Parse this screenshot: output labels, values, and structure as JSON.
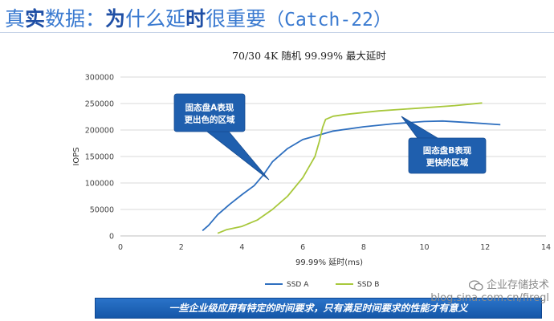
{
  "header": {
    "title_part1": "真",
    "title_part2": "实",
    "title_part3": "数据：",
    "title_part4": "为",
    "title_part5": "什么延",
    "title_part6": "时",
    "title_part7": "很重要",
    "title_part8": "（Catch-22）"
  },
  "chart_data": {
    "type": "line",
    "title": "70/30 4K 随机 99.99% 最大延时",
    "xlabel": "99.99% 延时(ms)",
    "ylabel": "IOPS",
    "xlim": [
      0,
      14
    ],
    "ylim": [
      0,
      300000
    ],
    "x_ticks": [
      0,
      2,
      4,
      6,
      8,
      10,
      12,
      14
    ],
    "y_ticks": [
      0,
      50000,
      100000,
      150000,
      200000,
      250000,
      300000
    ],
    "grid": "horizontal",
    "legend_position": "bottom",
    "series": [
      {
        "name": "SSD A",
        "color": "#2e6fbf",
        "x": [
          2.7,
          2.9,
          3.2,
          3.6,
          4.0,
          4.4,
          4.7,
          5.0,
          5.5,
          6.0,
          7.0,
          8.0,
          9.0,
          10.0,
          10.6,
          11.5,
          12.5
        ],
        "y": [
          10000,
          20000,
          40000,
          60000,
          78000,
          95000,
          115000,
          140000,
          165000,
          182000,
          198000,
          206000,
          212000,
          216000,
          217000,
          214000,
          210000
        ]
      },
      {
        "name": "SSD B",
        "color": "#a8c83c",
        "x": [
          3.2,
          3.5,
          4.0,
          4.5,
          5.0,
          5.5,
          6.0,
          6.4,
          6.55,
          6.65,
          6.75,
          7.0,
          7.5,
          8.5,
          10.0,
          11.0,
          11.9
        ],
        "y": [
          5000,
          12000,
          18000,
          30000,
          50000,
          75000,
          110000,
          150000,
          180000,
          205000,
          220000,
          226000,
          230000,
          236000,
          242000,
          246000,
          251000
        ]
      }
    ],
    "callouts": [
      {
        "line1": "固态盘A表现",
        "line2": "更出色的区域"
      },
      {
        "line1": "固态盘B表现",
        "line2": "更快的区域"
      }
    ]
  },
  "banner": {
    "text": "一些企业级应用有特定的时间要求，只有满足时间要求的性能才有意义"
  },
  "watermark": {
    "line1": "企业存储技术",
    "line2": "blog.sina.com.cn/firegl"
  },
  "colors": {
    "title": "#2f6fc4",
    "title_emph": "#1f4fa5",
    "callout_fill": "#1f5fae",
    "banner": "#1c62b5"
  }
}
